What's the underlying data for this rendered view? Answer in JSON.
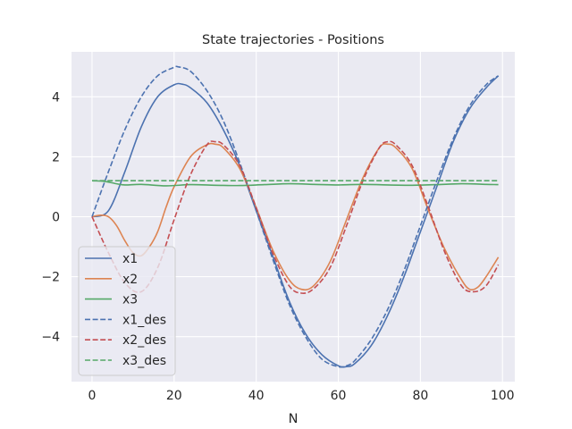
{
  "chart_data": {
    "type": "line",
    "title": "State trajectories - Positions",
    "xlabel": "N",
    "ylabel": "",
    "xlim": [
      -5,
      103
    ],
    "ylim": [
      -5.5,
      5.5
    ],
    "xticks": [
      0,
      20,
      40,
      60,
      80,
      100
    ],
    "yticks": [
      -4,
      -2,
      0,
      2,
      4
    ],
    "xtick_labels": [
      "0",
      "20",
      "40",
      "60",
      "80",
      "100"
    ],
    "ytick_labels": [
      "−4",
      "−2",
      "0",
      "2",
      "4"
    ],
    "grid": true,
    "legend_position": "lower-left",
    "series": [
      {
        "name": "x1",
        "color": "#4c72b0",
        "dash": "solid",
        "x": [
          0,
          4,
          8,
          12,
          16,
          20,
          22,
          24,
          28,
          32,
          36,
          40,
          44,
          48,
          52,
          56,
          60,
          62,
          64,
          68,
          72,
          76,
          80,
          84,
          88,
          92,
          96,
          99
        ],
        "y": [
          0.0,
          0.2,
          1.5,
          3.0,
          4.0,
          4.4,
          4.42,
          4.3,
          3.8,
          2.9,
          1.7,
          0.2,
          -1.3,
          -2.8,
          -3.9,
          -4.6,
          -4.97,
          -5.0,
          -4.9,
          -4.3,
          -3.3,
          -2.0,
          -0.5,
          1.0,
          2.5,
          3.6,
          4.3,
          4.7
        ]
      },
      {
        "name": "x2",
        "color": "#dd8452",
        "dash": "solid",
        "x": [
          0,
          2,
          4,
          6,
          8,
          10,
          12,
          14,
          16,
          18,
          20,
          24,
          28,
          30,
          32,
          36,
          40,
          44,
          48,
          51,
          54,
          58,
          62,
          66,
          70,
          72,
          74,
          78,
          82,
          86,
          90,
          92,
          94,
          96,
          99
        ],
        "y": [
          0.0,
          0.05,
          0.0,
          -0.3,
          -0.8,
          -1.2,
          -1.3,
          -1.0,
          -0.5,
          0.3,
          1.0,
          2.0,
          2.4,
          2.42,
          2.3,
          1.6,
          0.3,
          -1.1,
          -2.1,
          -2.42,
          -2.3,
          -1.5,
          -0.1,
          1.3,
          2.3,
          2.42,
          2.3,
          1.6,
          0.2,
          -1.1,
          -2.1,
          -2.42,
          -2.35,
          -2.0,
          -1.35
        ]
      },
      {
        "name": "x3",
        "color": "#55a868",
        "dash": "solid",
        "x": [
          0,
          3,
          6,
          8,
          12,
          18,
          24,
          30,
          36,
          42,
          48,
          54,
          60,
          66,
          72,
          78,
          84,
          90,
          96,
          99
        ],
        "y": [
          1.2,
          1.18,
          1.1,
          1.06,
          1.08,
          1.03,
          1.07,
          1.05,
          1.04,
          1.07,
          1.1,
          1.08,
          1.06,
          1.08,
          1.06,
          1.05,
          1.07,
          1.1,
          1.08,
          1.07
        ]
      },
      {
        "name": "x1_des",
        "color": "#4c72b0",
        "dash": "dashed",
        "x": [
          0,
          4,
          8,
          12,
          16,
          20,
          21,
          24,
          28,
          32,
          36,
          40,
          44,
          48,
          52,
          56,
          60,
          62,
          64,
          68,
          72,
          76,
          80,
          84,
          88,
          92,
          96,
          99
        ],
        "y": [
          0.0,
          1.5,
          2.9,
          4.0,
          4.7,
          4.98,
          5.0,
          4.85,
          4.2,
          3.2,
          1.8,
          0.2,
          -1.4,
          -2.9,
          -4.0,
          -4.75,
          -5.0,
          -4.97,
          -4.8,
          -4.1,
          -3.1,
          -1.8,
          -0.3,
          1.2,
          2.6,
          3.7,
          4.4,
          4.7
        ]
      },
      {
        "name": "x2_des",
        "color": "#c44e52",
        "dash": "dashed",
        "x": [
          0,
          4,
          8,
          12,
          16,
          20,
          24,
          28,
          30,
          32,
          36,
          40,
          44,
          48,
          51,
          54,
          58,
          62,
          66,
          70,
          72,
          74,
          78,
          82,
          86,
          90,
          93,
          96,
          99
        ],
        "y": [
          0.0,
          -1.2,
          -2.2,
          -2.5,
          -1.7,
          -0.1,
          1.4,
          2.4,
          2.5,
          2.4,
          1.7,
          0.3,
          -1.2,
          -2.3,
          -2.55,
          -2.4,
          -1.7,
          -0.3,
          1.2,
          2.3,
          2.5,
          2.4,
          1.7,
          0.3,
          -1.2,
          -2.3,
          -2.5,
          -2.3,
          -1.6
        ]
      },
      {
        "name": "x3_des",
        "color": "#55a868",
        "dash": "dashed",
        "x": [
          0,
          99
        ],
        "y": [
          1.2,
          1.2
        ]
      }
    ]
  }
}
